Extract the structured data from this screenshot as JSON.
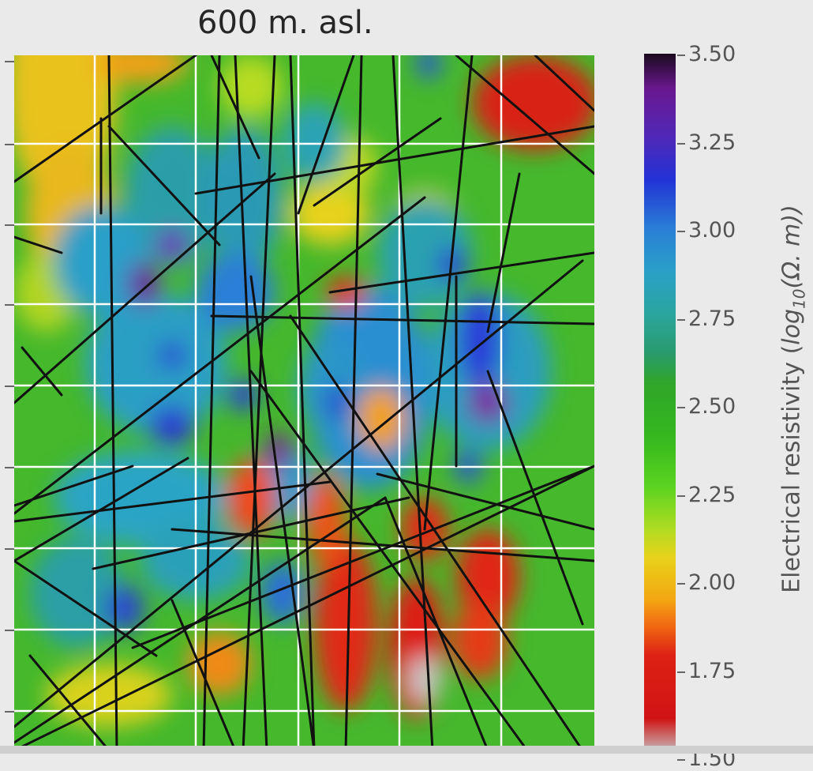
{
  "title": "600 m. asl.",
  "chart_data": {
    "type": "heatmap",
    "title": "600 m. asl.",
    "colorbar": {
      "label": "Electrical resistivity (log10(Ω. m))",
      "label_parts": {
        "prefix": "Electrical resistivity (",
        "log": "log",
        "sub": "10",
        "suffix": "(Ω. m))"
      },
      "range": [
        1.5,
        3.5
      ],
      "ticks": [
        "3.50",
        "3.25",
        "3.00",
        "2.75",
        "2.50",
        "2.25",
        "2.00",
        "1.75",
        "1.50"
      ],
      "colormap": "nipy_spectral (reversed)"
    },
    "grid": true,
    "grid_color": "#ffffff",
    "fracture_line_color": "#111111",
    "anomalies": [
      {
        "level": "high",
        "value": 3.2,
        "area": "upper-left"
      },
      {
        "level": "high",
        "value": 3.1,
        "area": "center-right"
      },
      {
        "level": "low",
        "value": 1.7,
        "area": "lower-center"
      },
      {
        "level": "low",
        "value": 1.6,
        "area": "top-right corner"
      }
    ]
  }
}
